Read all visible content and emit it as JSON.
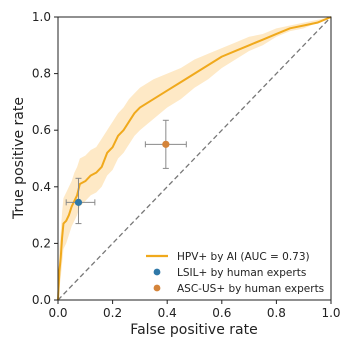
{
  "chart_data": {
    "type": "line",
    "xlabel": "False positive rate",
    "ylabel": "True positive rate",
    "xlim": [
      0.0,
      1.0
    ],
    "ylim": [
      0.0,
      1.0
    ],
    "xticks": [
      "0.0",
      "0.2",
      "0.4",
      "0.6",
      "0.8",
      "1.0"
    ],
    "yticks": [
      "0.0",
      "0.2",
      "0.4",
      "0.6",
      "0.8",
      "1.0"
    ],
    "grid": false,
    "legend_position": "lower-right",
    "series": [
      {
        "name": "HPV+ by AI (AUC = 0.73)",
        "kind": "line",
        "color": "#f0a91c",
        "band_color": "#fde2b3",
        "x": [
          0.0,
          0.005,
          0.01,
          0.015,
          0.02,
          0.03,
          0.04,
          0.05,
          0.06,
          0.07,
          0.08,
          0.1,
          0.12,
          0.14,
          0.16,
          0.18,
          0.2,
          0.22,
          0.24,
          0.26,
          0.28,
          0.3,
          0.35,
          0.4,
          0.45,
          0.5,
          0.55,
          0.6,
          0.65,
          0.7,
          0.75,
          0.8,
          0.85,
          0.9,
          0.95,
          1.0
        ],
        "y": [
          0.0,
          0.1,
          0.15,
          0.22,
          0.27,
          0.28,
          0.3,
          0.33,
          0.35,
          0.37,
          0.41,
          0.42,
          0.44,
          0.45,
          0.47,
          0.52,
          0.54,
          0.58,
          0.6,
          0.63,
          0.66,
          0.68,
          0.71,
          0.74,
          0.77,
          0.8,
          0.83,
          0.86,
          0.88,
          0.9,
          0.92,
          0.94,
          0.96,
          0.97,
          0.98,
          1.0
        ],
        "ci_lower": [
          0.0,
          0.04,
          0.08,
          0.13,
          0.18,
          0.2,
          0.23,
          0.26,
          0.28,
          0.3,
          0.33,
          0.35,
          0.37,
          0.38,
          0.4,
          0.44,
          0.46,
          0.5,
          0.52,
          0.55,
          0.58,
          0.6,
          0.64,
          0.68,
          0.71,
          0.75,
          0.78,
          0.82,
          0.85,
          0.88,
          0.9,
          0.93,
          0.95,
          0.96,
          0.98,
          1.0
        ],
        "ci_upper": [
          0.0,
          0.18,
          0.24,
          0.31,
          0.36,
          0.38,
          0.4,
          0.42,
          0.45,
          0.47,
          0.5,
          0.51,
          0.53,
          0.54,
          0.57,
          0.6,
          0.63,
          0.66,
          0.68,
          0.71,
          0.73,
          0.75,
          0.78,
          0.8,
          0.82,
          0.85,
          0.87,
          0.89,
          0.91,
          0.93,
          0.94,
          0.96,
          0.97,
          0.98,
          0.99,
          1.0
        ]
      },
      {
        "name": "LSIL+ by human experts",
        "kind": "point",
        "color": "#2f78a8",
        "x": 0.075,
        "y": 0.345,
        "x_err": [
          0.03,
          0.135
        ],
        "y_err": [
          0.27,
          0.43
        ]
      },
      {
        "name": "ASC-US+ by human experts",
        "kind": "point",
        "color": "#d4843a",
        "x": 0.395,
        "y": 0.55,
        "x_err": [
          0.32,
          0.47
        ],
        "y_err": [
          0.465,
          0.635
        ]
      }
    ],
    "reference_line": {
      "x": [
        0.0,
        1.0
      ],
      "y": [
        0.0,
        1.0
      ],
      "color": "#777777",
      "style": "dashed"
    }
  }
}
